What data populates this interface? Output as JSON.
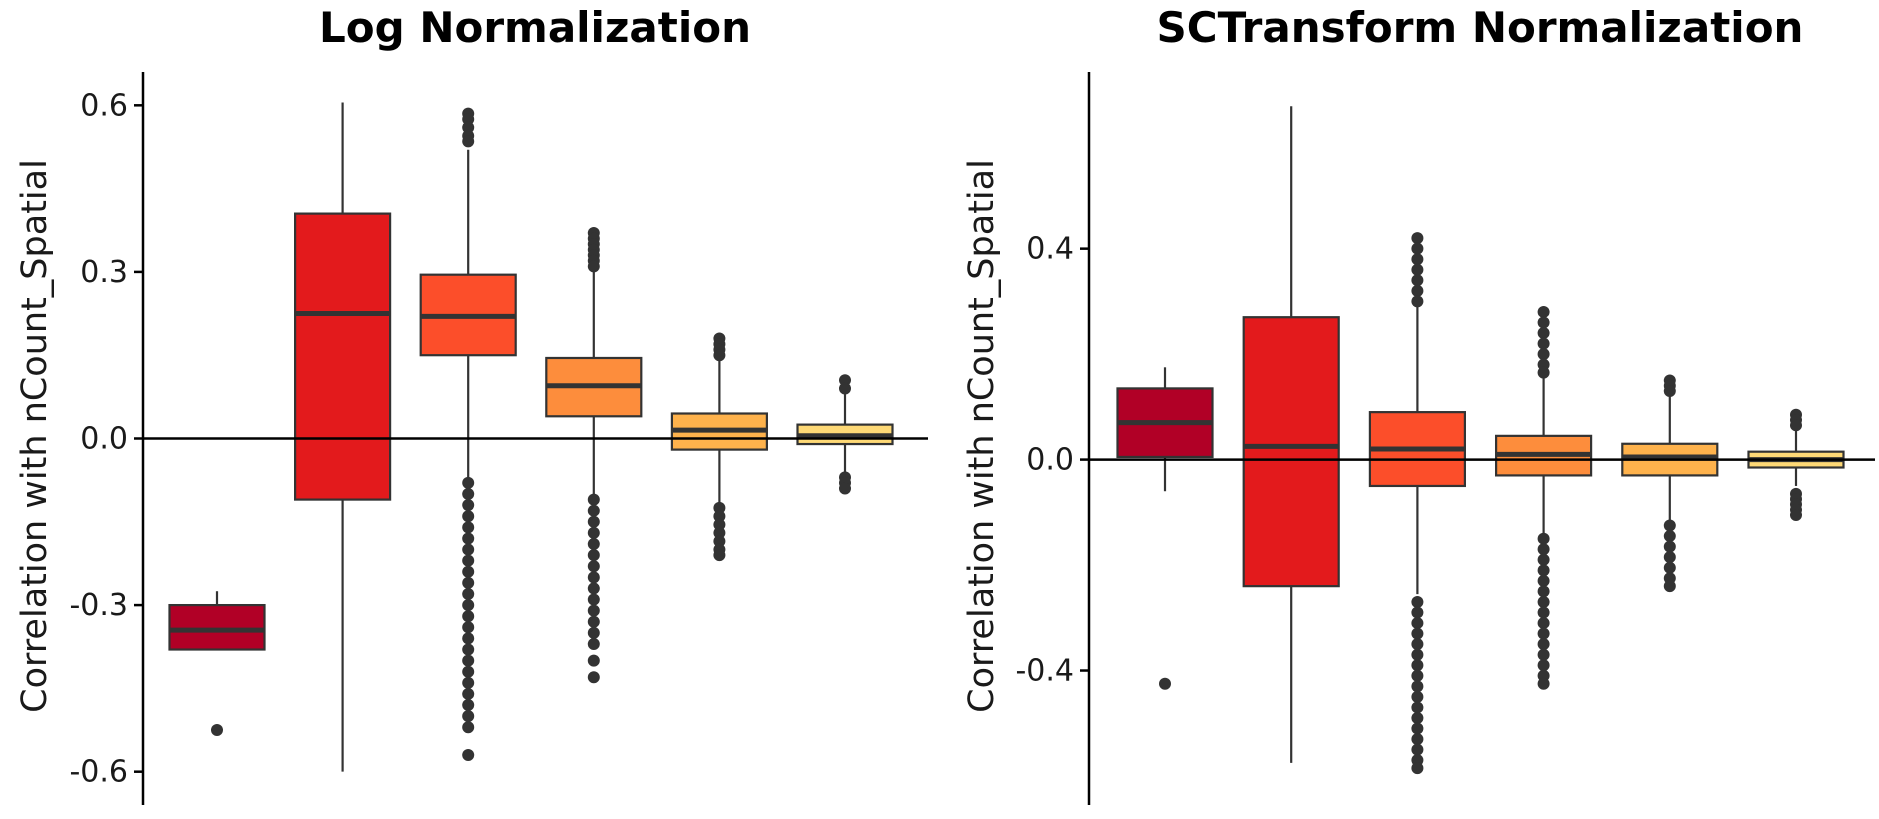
{
  "chart_data": [
    {
      "type": "box",
      "title": "Log Normalization",
      "ylabel": "Correlation with nCount_Spatial",
      "xlabel": "",
      "ylim": [
        -0.66,
        0.66
      ],
      "yticks": [
        -0.6,
        -0.3,
        0.0,
        0.3,
        0.6
      ],
      "ytick_labels": [
        "-0.6",
        "-0.3",
        "0.0",
        "0.3",
        "0.6"
      ],
      "reference_line": 0,
      "grid": false,
      "legend": "none",
      "boxes": [
        {
          "fill": "#b10026",
          "whisker_low": -0.38,
          "q1": -0.38,
          "median": -0.345,
          "q3": -0.3,
          "whisker_high": -0.275,
          "outliers": [
            -0.525
          ]
        },
        {
          "fill": "#e31a1c",
          "whisker_low": -0.6,
          "q1": -0.11,
          "median": 0.225,
          "q3": 0.405,
          "whisker_high": 0.605,
          "outliers": []
        },
        {
          "fill": "#fc4e2a",
          "whisker_low": -0.075,
          "q1": 0.15,
          "median": 0.22,
          "q3": 0.295,
          "whisker_high": 0.52,
          "outliers": [
            0.585,
            0.575,
            0.56,
            0.545,
            0.535,
            -0.08,
            -0.1,
            -0.12,
            -0.14,
            -0.16,
            -0.18,
            -0.2,
            -0.22,
            -0.24,
            -0.26,
            -0.28,
            -0.3,
            -0.32,
            -0.34,
            -0.36,
            -0.38,
            -0.4,
            -0.42,
            -0.44,
            -0.46,
            -0.48,
            -0.5,
            -0.52,
            -0.57
          ]
        },
        {
          "fill": "#fd8d3c",
          "whisker_low": -0.105,
          "q1": 0.04,
          "median": 0.095,
          "q3": 0.145,
          "whisker_high": 0.3,
          "outliers": [
            0.37,
            0.36,
            0.35,
            0.34,
            0.33,
            0.32,
            0.31,
            -0.11,
            -0.13,
            -0.15,
            -0.17,
            -0.19,
            -0.21,
            -0.23,
            -0.25,
            -0.27,
            -0.29,
            -0.31,
            -0.33,
            -0.35,
            -0.37,
            -0.4,
            -0.43
          ]
        },
        {
          "fill": "#feb24c",
          "whisker_low": -0.115,
          "q1": -0.02,
          "median": 0.015,
          "q3": 0.045,
          "whisker_high": 0.145,
          "outliers": [
            0.18,
            0.17,
            0.16,
            0.15,
            -0.125,
            -0.14,
            -0.155,
            -0.17,
            -0.185,
            -0.2,
            -0.21
          ]
        },
        {
          "fill": "#fed976",
          "whisker_low": -0.06,
          "q1": -0.01,
          "median": 0.005,
          "q3": 0.025,
          "whisker_high": 0.08,
          "outliers": [
            0.105,
            0.09,
            -0.07,
            -0.08,
            -0.09
          ]
        }
      ]
    },
    {
      "type": "box",
      "title": "SCTransform Normalization",
      "ylabel": "Correlation with nCount_Spatial",
      "xlabel": "",
      "ylim": [
        -0.655,
        0.735
      ],
      "yticks": [
        -0.4,
        0.0,
        0.4
      ],
      "ytick_labels": [
        "-0.4",
        "0.0",
        "0.4"
      ],
      "reference_line": 0,
      "grid": false,
      "legend": "none",
      "boxes": [
        {
          "fill": "#b10026",
          "whisker_low": -0.06,
          "q1": 0.005,
          "median": 0.07,
          "q3": 0.135,
          "whisker_high": 0.175,
          "outliers": [
            -0.425
          ]
        },
        {
          "fill": "#e31a1c",
          "whisker_low": -0.575,
          "q1": -0.24,
          "median": 0.025,
          "q3": 0.27,
          "whisker_high": 0.67,
          "outliers": []
        },
        {
          "fill": "#fc4e2a",
          "whisker_low": -0.255,
          "q1": -0.05,
          "median": 0.02,
          "q3": 0.09,
          "whisker_high": 0.29,
          "outliers": [
            0.42,
            0.4,
            0.38,
            0.36,
            0.34,
            0.32,
            0.3,
            -0.27,
            -0.29,
            -0.31,
            -0.33,
            -0.35,
            -0.37,
            -0.39,
            -0.41,
            -0.43,
            -0.45,
            -0.47,
            -0.49,
            -0.51,
            -0.53,
            -0.55,
            -0.57,
            -0.585
          ]
        },
        {
          "fill": "#fd8d3c",
          "whisker_low": -0.14,
          "q1": -0.03,
          "median": 0.01,
          "q3": 0.045,
          "whisker_high": 0.155,
          "outliers": [
            0.28,
            0.26,
            0.24,
            0.22,
            0.2,
            0.18,
            0.165,
            -0.15,
            -0.17,
            -0.19,
            -0.21,
            -0.23,
            -0.25,
            -0.27,
            -0.29,
            -0.31,
            -0.33,
            -0.35,
            -0.37,
            -0.39,
            -0.41,
            -0.425
          ]
        },
        {
          "fill": "#feb24c",
          "whisker_low": -0.115,
          "q1": -0.03,
          "median": 0.005,
          "q3": 0.03,
          "whisker_high": 0.12,
          "outliers": [
            0.15,
            0.14,
            0.13,
            -0.125,
            -0.145,
            -0.165,
            -0.185,
            -0.205,
            -0.225,
            -0.24
          ]
        },
        {
          "fill": "#fed976",
          "whisker_low": -0.05,
          "q1": -0.015,
          "median": 0.0,
          "q3": 0.015,
          "whisker_high": 0.06,
          "outliers": [
            0.085,
            0.075,
            0.065,
            -0.065,
            -0.075,
            -0.085,
            -0.095,
            -0.105
          ]
        }
      ]
    }
  ]
}
